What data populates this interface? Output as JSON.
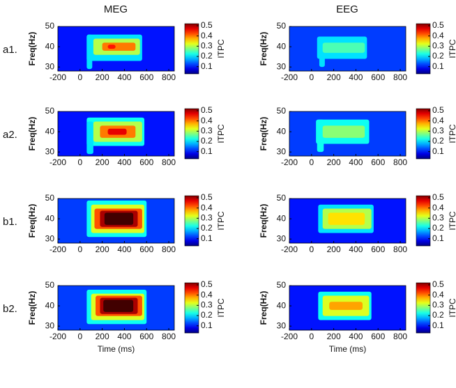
{
  "columns": [
    "MEG",
    "EEG"
  ],
  "rows": [
    "a1.",
    "a2.",
    "b1.",
    "b2."
  ],
  "chart_data": [
    {
      "type": "heatmap",
      "ylabel": "Freq(Hz)",
      "clabel": "ITPC",
      "xlim": [
        -200,
        850
      ],
      "ylim": [
        28,
        50
      ],
      "xticks": [
        -200,
        0,
        200,
        400,
        600,
        800
      ],
      "yticks": [
        30,
        40,
        50
      ],
      "clim": [
        0.03,
        0.52
      ],
      "cticks": [
        0.1,
        0.2,
        0.3,
        0.4,
        0.5
      ],
      "background": 0.1,
      "regions": [
        {
          "x": [
            60,
            560
          ],
          "y": [
            33,
            46
          ],
          "value": 0.2
        },
        {
          "x": [
            60,
            110
          ],
          "y": [
            29,
            46
          ],
          "value": 0.2
        },
        {
          "x": [
            120,
            540
          ],
          "y": [
            36,
            44
          ],
          "value": 0.3
        },
        {
          "x": [
            200,
            500
          ],
          "y": [
            38,
            42
          ],
          "value": 0.4
        },
        {
          "x": [
            250,
            320
          ],
          "y": [
            39,
            41
          ],
          "value": 0.45
        }
      ]
    },
    {
      "type": "heatmap",
      "ylabel": "Freq(Hz)",
      "clabel": "ITPC",
      "xlim": [
        -200,
        850
      ],
      "ylim": [
        28,
        50
      ],
      "xticks": [
        -200,
        0,
        200,
        400,
        600,
        800
      ],
      "yticks": [
        30,
        40,
        50
      ],
      "clim": [
        0.03,
        0.52
      ],
      "cticks": [
        0.1,
        0.2,
        0.3,
        0.4,
        0.5
      ],
      "background": 0.12,
      "regions": [
        {
          "x": [
            50,
            500
          ],
          "y": [
            34,
            45
          ],
          "value": 0.2
        },
        {
          "x": [
            70,
            120
          ],
          "y": [
            30,
            45
          ],
          "value": 0.2
        },
        {
          "x": [
            100,
            480
          ],
          "y": [
            37,
            42
          ],
          "value": 0.25
        }
      ]
    },
    {
      "type": "heatmap",
      "ylabel": "Freq(Hz)",
      "clabel": "ITPC",
      "xlim": [
        -200,
        850
      ],
      "ylim": [
        28,
        50
      ],
      "xticks": [
        -200,
        0,
        200,
        400,
        600,
        800
      ],
      "yticks": [
        30,
        40,
        50
      ],
      "clim": [
        0.03,
        0.52
      ],
      "cticks": [
        0.1,
        0.2,
        0.3,
        0.4,
        0.5
      ],
      "background": 0.1,
      "regions": [
        {
          "x": [
            60,
            580
          ],
          "y": [
            33,
            47
          ],
          "value": 0.22
        },
        {
          "x": [
            60,
            120
          ],
          "y": [
            29,
            45
          ],
          "value": 0.2
        },
        {
          "x": [
            120,
            560
          ],
          "y": [
            35,
            45
          ],
          "value": 0.3
        },
        {
          "x": [
            180,
            500
          ],
          "y": [
            37,
            43
          ],
          "value": 0.4
        },
        {
          "x": [
            250,
            420
          ],
          "y": [
            38.5,
            41.5
          ],
          "value": 0.47
        }
      ]
    },
    {
      "type": "heatmap",
      "ylabel": "Freq(Hz)",
      "clabel": "ITPC",
      "xlim": [
        -200,
        850
      ],
      "ylim": [
        28,
        50
      ],
      "xticks": [
        -200,
        0,
        200,
        400,
        600,
        800
      ],
      "yticks": [
        30,
        40,
        50
      ],
      "clim": [
        0.03,
        0.52
      ],
      "cticks": [
        0.1,
        0.2,
        0.3,
        0.4,
        0.5
      ],
      "background": 0.12,
      "regions": [
        {
          "x": [
            40,
            520
          ],
          "y": [
            34,
            46
          ],
          "value": 0.22
        },
        {
          "x": [
            50,
            110
          ],
          "y": [
            30,
            46
          ],
          "value": 0.22
        },
        {
          "x": [
            100,
            480
          ],
          "y": [
            37,
            43
          ],
          "value": 0.28
        }
      ]
    },
    {
      "type": "heatmap",
      "ylabel": "Freq(Hz)",
      "clabel": "ITPC",
      "xlim": [
        -200,
        850
      ],
      "ylim": [
        28,
        50
      ],
      "xticks": [
        -200,
        0,
        200,
        400,
        600,
        800
      ],
      "yticks": [
        30,
        40,
        50
      ],
      "clim": [
        0.03,
        0.52
      ],
      "cticks": [
        0.1,
        0.2,
        0.3,
        0.4,
        0.5
      ],
      "background": 0.12,
      "regions": [
        {
          "x": [
            60,
            600
          ],
          "y": [
            31,
            49
          ],
          "value": 0.22
        },
        {
          "x": [
            100,
            580
          ],
          "y": [
            33,
            47
          ],
          "value": 0.32
        },
        {
          "x": [
            130,
            560
          ],
          "y": [
            35,
            45
          ],
          "value": 0.42
        },
        {
          "x": [
            180,
            520
          ],
          "y": [
            36,
            44
          ],
          "value": 0.5
        },
        {
          "x": [
            220,
            480
          ],
          "y": [
            37,
            43
          ],
          "value": 0.55
        }
      ]
    },
    {
      "type": "heatmap",
      "ylabel": "Freq(Hz)",
      "clabel": "ITPC",
      "xlim": [
        -200,
        850
      ],
      "ylim": [
        28,
        50
      ],
      "xticks": [
        -200,
        0,
        200,
        400,
        600,
        800
      ],
      "yticks": [
        30,
        40,
        50
      ],
      "clim": [
        0.03,
        0.52
      ],
      "cticks": [
        0.1,
        0.2,
        0.3,
        0.4,
        0.5
      ],
      "background": 0.1,
      "regions": [
        {
          "x": [
            60,
            560
          ],
          "y": [
            33,
            47
          ],
          "value": 0.2
        },
        {
          "x": [
            100,
            540
          ],
          "y": [
            35,
            45
          ],
          "value": 0.3
        },
        {
          "x": [
            150,
            480
          ],
          "y": [
            37,
            43
          ],
          "value": 0.35
        }
      ]
    },
    {
      "type": "heatmap",
      "ylabel": "Freq(Hz)",
      "xlabel": "Time (ms)",
      "clabel": "ITPC",
      "xlim": [
        -200,
        850
      ],
      "ylim": [
        28,
        50
      ],
      "xticks": [
        -200,
        0,
        200,
        400,
        600,
        800
      ],
      "yticks": [
        30,
        40,
        50
      ],
      "clim": [
        0.03,
        0.52
      ],
      "cticks": [
        0.1,
        0.2,
        0.3,
        0.4,
        0.5
      ],
      "background": 0.12,
      "regions": [
        {
          "x": [
            60,
            600
          ],
          "y": [
            31,
            48
          ],
          "value": 0.22
        },
        {
          "x": [
            100,
            580
          ],
          "y": [
            33,
            46
          ],
          "value": 0.32
        },
        {
          "x": [
            140,
            560
          ],
          "y": [
            35,
            45
          ],
          "value": 0.42
        },
        {
          "x": [
            180,
            520
          ],
          "y": [
            36,
            44
          ],
          "value": 0.5
        },
        {
          "x": [
            210,
            480
          ],
          "y": [
            37,
            43
          ],
          "value": 0.55
        }
      ]
    },
    {
      "type": "heatmap",
      "ylabel": "Freq(Hz)",
      "xlabel": "Time (ms)",
      "clabel": "ITPC",
      "xlim": [
        -200,
        850
      ],
      "ylim": [
        28,
        50
      ],
      "xticks": [
        -200,
        0,
        200,
        400,
        600,
        800
      ],
      "yticks": [
        30,
        40,
        50
      ],
      "clim": [
        0.03,
        0.52
      ],
      "cticks": [
        0.1,
        0.2,
        0.3,
        0.4,
        0.5
      ],
      "background": 0.1,
      "regions": [
        {
          "x": [
            60,
            540
          ],
          "y": [
            33,
            47
          ],
          "value": 0.22
        },
        {
          "x": [
            100,
            520
          ],
          "y": [
            35,
            45
          ],
          "value": 0.32
        },
        {
          "x": [
            160,
            460
          ],
          "y": [
            38,
            42
          ],
          "value": 0.38
        }
      ]
    }
  ]
}
